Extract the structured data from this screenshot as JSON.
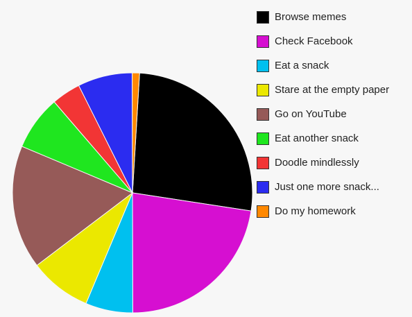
{
  "chart_data": {
    "type": "pie",
    "title": "",
    "legend_position": "top-right",
    "slices": [
      {
        "label": "Browse memes",
        "value": 27,
        "color": "#000000"
      },
      {
        "label": "Check Facebook",
        "value": 23,
        "color": "#d60fd1"
      },
      {
        "label": "Eat a snack",
        "value": 6.5,
        "color": "#00c0ef"
      },
      {
        "label": "Stare at the empty paper",
        "value": 8.5,
        "color": "#ebe800"
      },
      {
        "label": "Go on YouTube",
        "value": 17,
        "color": "#965a58"
      },
      {
        "label": "Eat another snack",
        "value": 7.5,
        "color": "#1fe61f"
      },
      {
        "label": "Doodle mindlessly",
        "value": 4,
        "color": "#f23535"
      },
      {
        "label": "Just one more snack...",
        "value": 7.5,
        "color": "#2b2cf0"
      },
      {
        "label": "Do my homework",
        "value": 1,
        "color": "#ff8800"
      }
    ]
  }
}
